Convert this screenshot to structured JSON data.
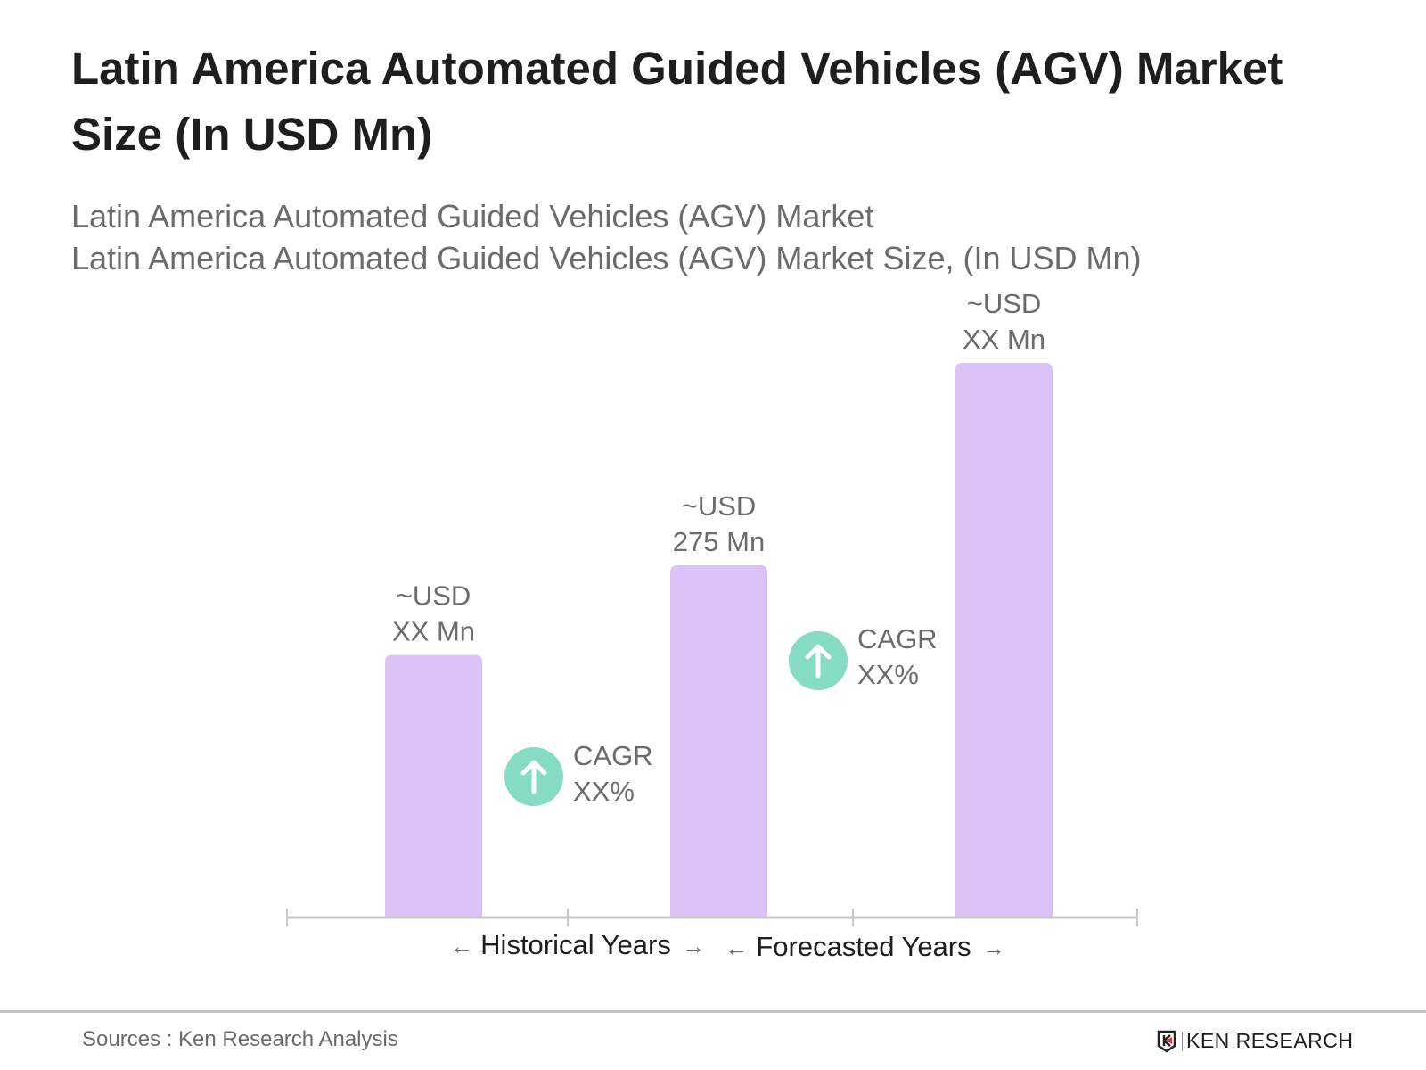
{
  "title": "Latin America Automated Guided Vehicles (AGV) Market Size (In USD Mn)",
  "subtitle_lines": [
    "Latin America Automated Guided Vehicles (AGV) Market",
    "Latin America Automated Guided Vehicles (AGV) Market Size, (In USD Mn)"
  ],
  "chart_data": {
    "type": "bar",
    "values": [
      205,
      275,
      433
    ],
    "data_labels": [
      [
        "~USD",
        "XX Mn"
      ],
      [
        "~USD",
        "275 Mn"
      ],
      [
        "~USD",
        "XX Mn"
      ]
    ],
    "ylim": [
      0,
      440
    ],
    "grid": false,
    "bar_color": "#dcc3f7",
    "axis_sections": [
      "Historical Years",
      "Forecasted Years"
    ],
    "annotations": [
      {
        "label": "CAGR",
        "value": "XX%",
        "icon": "arrow-up-circle-icon",
        "between": [
          0,
          1
        ]
      },
      {
        "label": "CAGR",
        "value": "XX%",
        "icon": "arrow-up-circle-icon",
        "between": [
          1,
          2
        ]
      }
    ],
    "annotation_color": "#86dcc2"
  },
  "footer": {
    "sources": "Sources : Ken Research Analysis",
    "logo_text": "KEN RESEARCH"
  }
}
